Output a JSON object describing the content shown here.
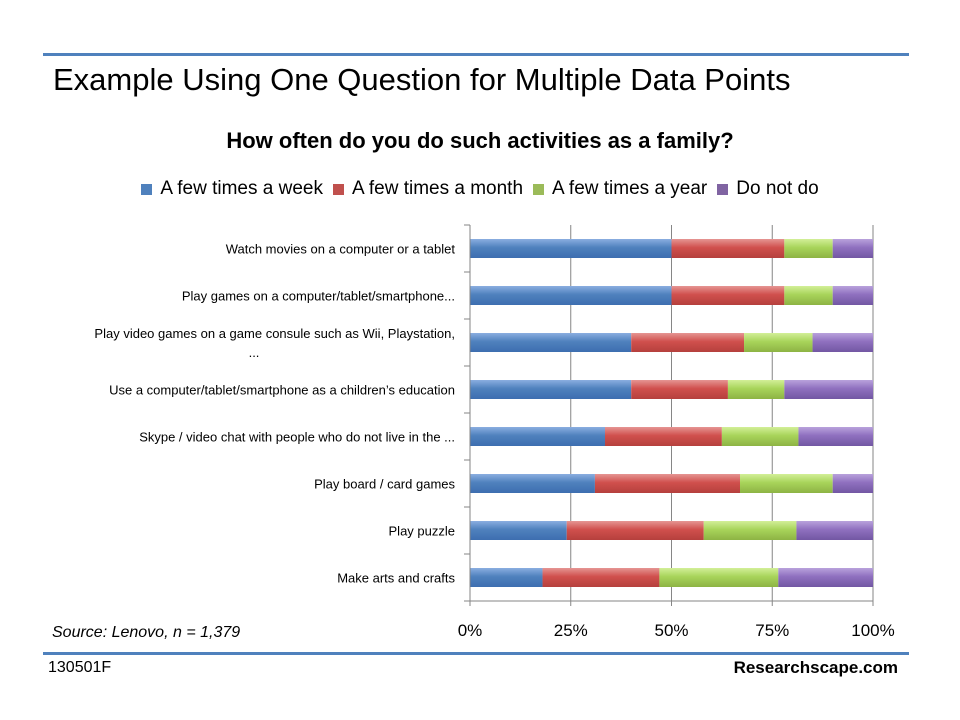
{
  "slide": {
    "title": "Example Using One Question for Multiple Data Points",
    "source": "Source: Lenovo, n = 1,379",
    "footer_code": "130501F",
    "footer_site": "Researchscape.com"
  },
  "colors": {
    "accent_rule": "#4f81bd",
    "series": [
      "#4f81bd",
      "#c0504d",
      "#9bbb59",
      "#8064a2"
    ]
  },
  "chart_data": {
    "type": "bar",
    "orientation": "horizontal",
    "stacked": true,
    "percent_stacked": true,
    "title": "How often do you do such activities as a family?",
    "legend_position": "top",
    "grid": true,
    "xlim": [
      0,
      100
    ],
    "x_ticks": [
      "0%",
      "25%",
      "50%",
      "75%",
      "100%"
    ],
    "categories": [
      "Watch movies on a computer or a tablet",
      "Play games on a computer/tablet/smartphone...",
      "Play video games on a game consule such as Wii, Playstation, ...",
      "Use a computer/tablet/smartphone  as a children’s education",
      "Skype / video chat with people who do not live in the ...",
      "Play board / card games",
      "Play puzzle",
      "Make arts and crafts"
    ],
    "category_lines": [
      [
        "Watch movies on a computer or a tablet"
      ],
      [
        "Play games on a computer/tablet/smartphone..."
      ],
      [
        "Play video games on a game consule such as Wii, Playstation,",
        "..."
      ],
      [
        "Use a computer/tablet/smartphone  as a children’s education"
      ],
      [
        "Skype / video chat with people who do not live in the ..."
      ],
      [
        "Play board / card games"
      ],
      [
        "Play puzzle"
      ],
      [
        "Make arts and crafts"
      ]
    ],
    "series": [
      {
        "name": "A few times a week",
        "values": [
          50,
          50,
          40,
          40,
          33.5,
          31,
          24,
          18
        ]
      },
      {
        "name": "A few times a month",
        "values": [
          28,
          28,
          28,
          24,
          29,
          36,
          34,
          29
        ]
      },
      {
        "name": "A few times a year",
        "values": [
          12,
          12,
          17,
          14,
          19,
          23,
          23,
          29.5
        ]
      },
      {
        "name": "Do not do",
        "values": [
          10,
          10,
          15,
          22,
          18.5,
          10,
          19,
          23.5
        ]
      }
    ]
  }
}
